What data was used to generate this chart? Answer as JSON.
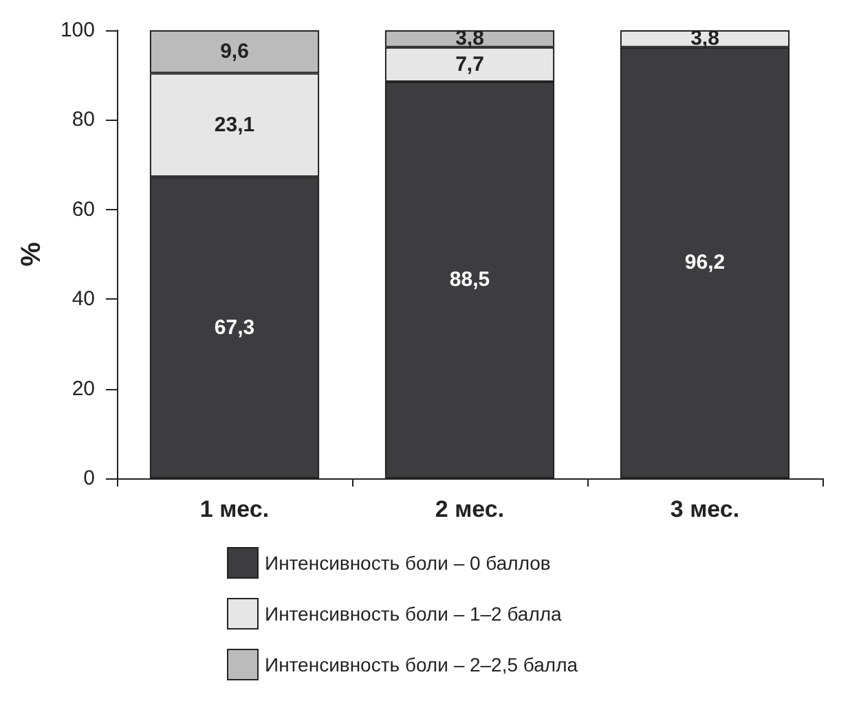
{
  "chart_data": {
    "type": "bar",
    "stacked": true,
    "ylabel": "%",
    "categories": [
      "1 мес.",
      "2 мес.",
      "3 мес."
    ],
    "series": [
      {
        "name": "Интенсивность боли – 0 баллов",
        "color": "#3d3d3f",
        "values": [
          67.3,
          88.5,
          96.2
        ],
        "value_labels": [
          "67,3",
          "88,5",
          "96,2"
        ]
      },
      {
        "name": "Интенсивность боли – 1–2 балла",
        "color": "#e6e6e6",
        "values": [
          23.1,
          7.7,
          3.8
        ],
        "value_labels": [
          "23,1",
          "7,7",
          "3,8"
        ]
      },
      {
        "name": "Интенсивность боли – 2–2,5 балла",
        "color": "#bbbbbb",
        "values": [
          9.6,
          3.8,
          null
        ],
        "value_labels": [
          "9,6",
          "3,8",
          null
        ]
      }
    ],
    "ylim": [
      0,
      100
    ],
    "yticks": [
      0,
      20,
      40,
      60,
      80,
      100
    ],
    "grid": false,
    "legend": "bottom"
  }
}
